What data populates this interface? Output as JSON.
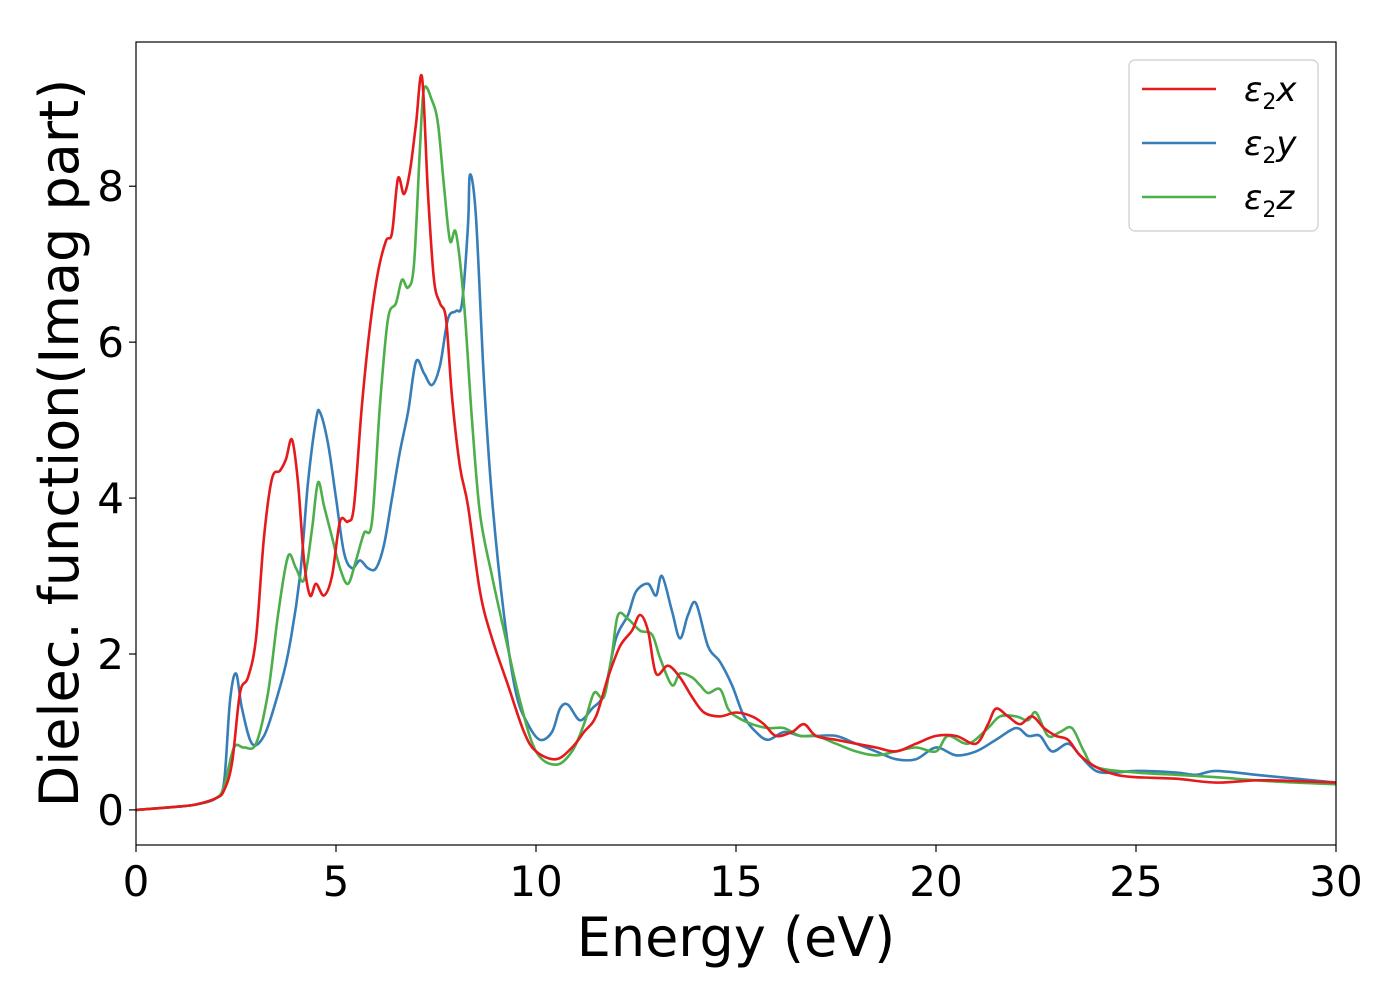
{
  "chart_data": {
    "type": "line",
    "xlabel": "Energy (eV)",
    "ylabel": "Dielec. function(Imag part)",
    "xlim": [
      0,
      30
    ],
    "ylim": [
      -0.45,
      9.85
    ],
    "xticks": [
      0,
      5,
      10,
      15,
      20,
      25,
      30
    ],
    "yticks": [
      0,
      2,
      4,
      6,
      8
    ],
    "grid": false,
    "legend_position": "top-right",
    "series": [
      {
        "name": "ε2x",
        "legend": {
          "base": "ε",
          "sub": "2",
          "var": "x"
        },
        "color": "#e41a1c",
        "points": [
          [
            0,
            0
          ],
          [
            1,
            0.04
          ],
          [
            1.5,
            0.07
          ],
          [
            2,
            0.15
          ],
          [
            2.2,
            0.25
          ],
          [
            2.4,
            0.6
          ],
          [
            2.6,
            1.5
          ],
          [
            2.8,
            1.7
          ],
          [
            3,
            2.2
          ],
          [
            3.2,
            3.5
          ],
          [
            3.4,
            4.25
          ],
          [
            3.6,
            4.35
          ],
          [
            3.75,
            4.5
          ],
          [
            3.9,
            4.75
          ],
          [
            4.05,
            4.2
          ],
          [
            4.2,
            3.2
          ],
          [
            4.35,
            2.75
          ],
          [
            4.5,
            2.9
          ],
          [
            4.7,
            2.75
          ],
          [
            4.9,
            3.0
          ],
          [
            5.1,
            3.7
          ],
          [
            5.3,
            3.7
          ],
          [
            5.45,
            3.9
          ],
          [
            5.65,
            5.2
          ],
          [
            5.85,
            6.2
          ],
          [
            6.05,
            6.9
          ],
          [
            6.25,
            7.3
          ],
          [
            6.4,
            7.4
          ],
          [
            6.55,
            8.1
          ],
          [
            6.7,
            7.9
          ],
          [
            6.85,
            8.2
          ],
          [
            7.0,
            8.8
          ],
          [
            7.15,
            9.4
          ],
          [
            7.3,
            7.9
          ],
          [
            7.45,
            6.8
          ],
          [
            7.6,
            6.5
          ],
          [
            7.75,
            6.3
          ],
          [
            7.9,
            5.3
          ],
          [
            8.1,
            4.4
          ],
          [
            8.3,
            3.9
          ],
          [
            8.6,
            2.8
          ],
          [
            8.9,
            2.2
          ],
          [
            9.3,
            1.6
          ],
          [
            9.7,
            1.0
          ],
          [
            10,
            0.75
          ],
          [
            10.5,
            0.65
          ],
          [
            10.9,
            0.8
          ],
          [
            11.2,
            1.0
          ],
          [
            11.5,
            1.2
          ],
          [
            11.8,
            1.7
          ],
          [
            12.1,
            2.1
          ],
          [
            12.4,
            2.3
          ],
          [
            12.6,
            2.5
          ],
          [
            12.8,
            2.3
          ],
          [
            13.0,
            1.75
          ],
          [
            13.3,
            1.85
          ],
          [
            13.6,
            1.7
          ],
          [
            13.9,
            1.45
          ],
          [
            14.2,
            1.25
          ],
          [
            14.6,
            1.2
          ],
          [
            15.0,
            1.25
          ],
          [
            15.4,
            1.2
          ],
          [
            15.7,
            1.1
          ],
          [
            16.0,
            0.95
          ],
          [
            16.4,
            1.0
          ],
          [
            16.7,
            1.1
          ],
          [
            17.0,
            0.95
          ],
          [
            17.5,
            0.9
          ],
          [
            18.0,
            0.85
          ],
          [
            18.5,
            0.8
          ],
          [
            19.0,
            0.75
          ],
          [
            19.5,
            0.85
          ],
          [
            20.0,
            0.95
          ],
          [
            20.5,
            0.95
          ],
          [
            21.0,
            0.85
          ],
          [
            21.3,
            1.1
          ],
          [
            21.5,
            1.3
          ],
          [
            21.8,
            1.2
          ],
          [
            22.1,
            1.1
          ],
          [
            22.4,
            1.2
          ],
          [
            22.7,
            1.05
          ],
          [
            23.0,
            0.95
          ],
          [
            23.3,
            0.9
          ],
          [
            23.6,
            0.7
          ],
          [
            24.0,
            0.55
          ],
          [
            24.5,
            0.45
          ],
          [
            25.0,
            0.42
          ],
          [
            26.0,
            0.4
          ],
          [
            27.0,
            0.35
          ],
          [
            28.0,
            0.38
          ],
          [
            29.0,
            0.37
          ],
          [
            30.0,
            0.35
          ]
        ]
      },
      {
        "name": "ε2y",
        "legend": {
          "base": "ε",
          "sub": "2",
          "var": "y"
        },
        "color": "#377eb8",
        "points": [
          [
            0,
            0
          ],
          [
            1,
            0.04
          ],
          [
            1.5,
            0.07
          ],
          [
            2,
            0.15
          ],
          [
            2.2,
            0.35
          ],
          [
            2.35,
            1.4
          ],
          [
            2.5,
            1.75
          ],
          [
            2.65,
            1.3
          ],
          [
            2.9,
            0.85
          ],
          [
            3.2,
            0.95
          ],
          [
            3.5,
            1.4
          ],
          [
            3.8,
            2.0
          ],
          [
            4.1,
            3.0
          ],
          [
            4.3,
            4.2
          ],
          [
            4.5,
            5.0
          ],
          [
            4.6,
            5.1
          ],
          [
            4.8,
            4.7
          ],
          [
            5.0,
            4.0
          ],
          [
            5.2,
            3.3
          ],
          [
            5.4,
            3.1
          ],
          [
            5.6,
            3.2
          ],
          [
            5.8,
            3.1
          ],
          [
            6.0,
            3.1
          ],
          [
            6.2,
            3.4
          ],
          [
            6.4,
            4.0
          ],
          [
            6.6,
            4.6
          ],
          [
            6.8,
            5.1
          ],
          [
            7.0,
            5.75
          ],
          [
            7.2,
            5.6
          ],
          [
            7.4,
            5.45
          ],
          [
            7.6,
            5.7
          ],
          [
            7.8,
            6.3
          ],
          [
            8.0,
            6.4
          ],
          [
            8.15,
            6.5
          ],
          [
            8.3,
            7.5
          ],
          [
            8.35,
            8.15
          ],
          [
            8.5,
            7.6
          ],
          [
            8.7,
            5.5
          ],
          [
            8.9,
            4.0
          ],
          [
            9.2,
            2.5
          ],
          [
            9.5,
            1.5
          ],
          [
            9.8,
            1.1
          ],
          [
            10.1,
            0.9
          ],
          [
            10.4,
            1.0
          ],
          [
            10.6,
            1.3
          ],
          [
            10.8,
            1.35
          ],
          [
            11.1,
            1.15
          ],
          [
            11.4,
            1.3
          ],
          [
            11.7,
            1.5
          ],
          [
            12.0,
            2.2
          ],
          [
            12.3,
            2.5
          ],
          [
            12.5,
            2.8
          ],
          [
            12.8,
            2.9
          ],
          [
            13.0,
            2.75
          ],
          [
            13.15,
            3.0
          ],
          [
            13.4,
            2.55
          ],
          [
            13.6,
            2.2
          ],
          [
            13.8,
            2.5
          ],
          [
            14.0,
            2.65
          ],
          [
            14.3,
            2.1
          ],
          [
            14.6,
            1.9
          ],
          [
            14.9,
            1.6
          ],
          [
            15.2,
            1.2
          ],
          [
            15.5,
            1.0
          ],
          [
            15.8,
            0.9
          ],
          [
            16.2,
            1.0
          ],
          [
            16.6,
            0.95
          ],
          [
            17.0,
            0.95
          ],
          [
            17.5,
            0.95
          ],
          [
            18.0,
            0.85
          ],
          [
            18.5,
            0.75
          ],
          [
            19.0,
            0.65
          ],
          [
            19.5,
            0.65
          ],
          [
            20.0,
            0.8
          ],
          [
            20.5,
            0.7
          ],
          [
            21.0,
            0.75
          ],
          [
            21.5,
            0.9
          ],
          [
            22.0,
            1.05
          ],
          [
            22.3,
            0.95
          ],
          [
            22.6,
            0.95
          ],
          [
            22.9,
            0.75
          ],
          [
            23.3,
            0.85
          ],
          [
            23.6,
            0.7
          ],
          [
            24.0,
            0.5
          ],
          [
            24.5,
            0.48
          ],
          [
            25.0,
            0.5
          ],
          [
            26.0,
            0.48
          ],
          [
            26.5,
            0.45
          ],
          [
            27.0,
            0.5
          ],
          [
            28.0,
            0.45
          ],
          [
            29.0,
            0.4
          ],
          [
            30.0,
            0.35
          ]
        ]
      },
      {
        "name": "ε2z",
        "legend": {
          "base": "ε",
          "sub": "2",
          "var": "z"
        },
        "color": "#4daf4a",
        "points": [
          [
            0,
            0
          ],
          [
            1,
            0.04
          ],
          [
            1.5,
            0.07
          ],
          [
            2,
            0.15
          ],
          [
            2.2,
            0.3
          ],
          [
            2.45,
            0.8
          ],
          [
            2.7,
            0.8
          ],
          [
            3.0,
            0.85
          ],
          [
            3.3,
            1.5
          ],
          [
            3.55,
            2.5
          ],
          [
            3.8,
            3.25
          ],
          [
            4.0,
            3.1
          ],
          [
            4.2,
            2.95
          ],
          [
            4.4,
            3.6
          ],
          [
            4.55,
            4.2
          ],
          [
            4.7,
            3.9
          ],
          [
            4.9,
            3.5
          ],
          [
            5.1,
            3.1
          ],
          [
            5.3,
            2.9
          ],
          [
            5.5,
            3.2
          ],
          [
            5.7,
            3.55
          ],
          [
            5.9,
            3.7
          ],
          [
            6.1,
            5.2
          ],
          [
            6.3,
            6.3
          ],
          [
            6.5,
            6.5
          ],
          [
            6.65,
            6.8
          ],
          [
            6.8,
            6.7
          ],
          [
            6.95,
            7.0
          ],
          [
            7.1,
            8.5
          ],
          [
            7.2,
            9.25
          ],
          [
            7.4,
            9.1
          ],
          [
            7.55,
            8.8
          ],
          [
            7.7,
            8.0
          ],
          [
            7.85,
            7.3
          ],
          [
            8.0,
            7.4
          ],
          [
            8.2,
            6.5
          ],
          [
            8.4,
            5.0
          ],
          [
            8.6,
            3.8
          ],
          [
            8.9,
            3.0
          ],
          [
            9.2,
            2.3
          ],
          [
            9.6,
            1.4
          ],
          [
            10.0,
            0.75
          ],
          [
            10.5,
            0.58
          ],
          [
            10.9,
            0.75
          ],
          [
            11.2,
            1.1
          ],
          [
            11.45,
            1.5
          ],
          [
            11.7,
            1.45
          ],
          [
            11.9,
            2.0
          ],
          [
            12.05,
            2.5
          ],
          [
            12.3,
            2.45
          ],
          [
            12.6,
            2.3
          ],
          [
            12.9,
            2.25
          ],
          [
            13.1,
            1.95
          ],
          [
            13.4,
            1.6
          ],
          [
            13.6,
            1.75
          ],
          [
            13.9,
            1.7
          ],
          [
            14.1,
            1.6
          ],
          [
            14.3,
            1.5
          ],
          [
            14.6,
            1.55
          ],
          [
            14.8,
            1.3
          ],
          [
            15.0,
            1.2
          ],
          [
            15.4,
            1.1
          ],
          [
            15.8,
            1.05
          ],
          [
            16.2,
            1.05
          ],
          [
            16.6,
            0.95
          ],
          [
            17.0,
            0.95
          ],
          [
            17.5,
            0.85
          ],
          [
            18.0,
            0.75
          ],
          [
            18.5,
            0.7
          ],
          [
            19.0,
            0.75
          ],
          [
            19.5,
            0.8
          ],
          [
            20.0,
            0.75
          ],
          [
            20.3,
            0.95
          ],
          [
            20.8,
            0.85
          ],
          [
            21.3,
            1.05
          ],
          [
            21.6,
            1.2
          ],
          [
            22.0,
            1.2
          ],
          [
            22.3,
            1.15
          ],
          [
            22.5,
            1.25
          ],
          [
            22.8,
            0.95
          ],
          [
            23.1,
            1.0
          ],
          [
            23.4,
            1.05
          ],
          [
            23.7,
            0.75
          ],
          [
            24.0,
            0.55
          ],
          [
            25.0,
            0.48
          ],
          [
            26.0,
            0.45
          ],
          [
            27.0,
            0.42
          ],
          [
            28.0,
            0.38
          ],
          [
            29.0,
            0.35
          ],
          [
            30.0,
            0.33
          ]
        ]
      }
    ]
  }
}
